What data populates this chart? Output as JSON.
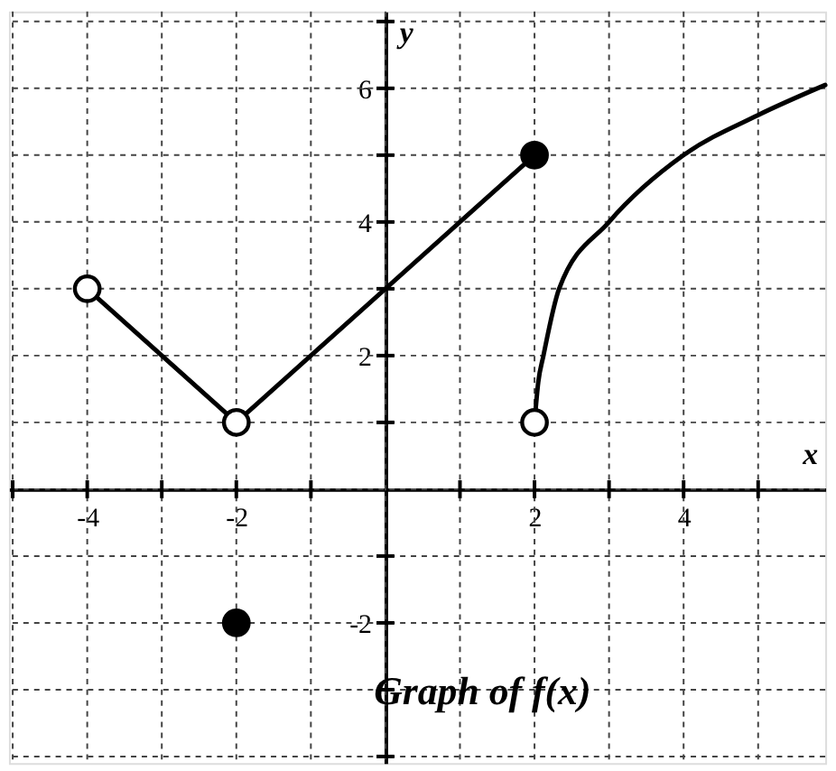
{
  "chart_data": {
    "type": "line",
    "title": "Graph of f(x)",
    "xlabel": "x",
    "ylabel": "y",
    "xlim": [
      -5.05,
      5.9
    ],
    "ylim": [
      -4.1,
      7.15
    ],
    "grid": true,
    "xticks": [
      {
        "value": -5,
        "label": null
      },
      -4,
      {
        "value": -3,
        "label": null
      },
      -2,
      {
        "value": -1,
        "label": null
      },
      {
        "value": 0,
        "label": null
      },
      {
        "value": 1,
        "label": null
      },
      2,
      {
        "value": 3,
        "label": null
      },
      4,
      {
        "value": 5,
        "label": null
      }
    ],
    "yticks": [
      {
        "value": -4,
        "label": null
      },
      {
        "value": -3,
        "label": null
      },
      -2,
      {
        "value": -1,
        "label": null
      },
      {
        "value": 0,
        "label": null
      },
      {
        "value": 1,
        "label": null
      },
      2,
      {
        "value": 3,
        "label": null
      },
      4,
      {
        "value": 5,
        "label": null
      },
      6,
      {
        "value": 7,
        "label": null
      }
    ],
    "series": [
      {
        "color": "#000000",
        "marker": "none",
        "line_style": "solid",
        "x": [
          -4,
          -2,
          2
        ],
        "values": [
          3,
          1,
          5
        ]
      },
      {
        "color": "#000000",
        "marker": "none",
        "line_style": "solid",
        "x": [
          2,
          2.05,
          2.12,
          2.33,
          3,
          4,
          5,
          5.9
        ],
        "values": [
          1,
          1.6,
          2,
          3,
          4,
          5,
          5.6,
          6.05
        ]
      },
      {
        "type": "scatter",
        "marker": "circle",
        "color": "#ffffff",
        "x": [
          -4,
          -2,
          2
        ],
        "values": [
          3,
          1,
          1
        ]
      },
      {
        "type": "scatter",
        "marker": "circle",
        "color": "#000000",
        "x": [
          2,
          -2
        ],
        "values": [
          5,
          -2
        ]
      }
    ]
  }
}
